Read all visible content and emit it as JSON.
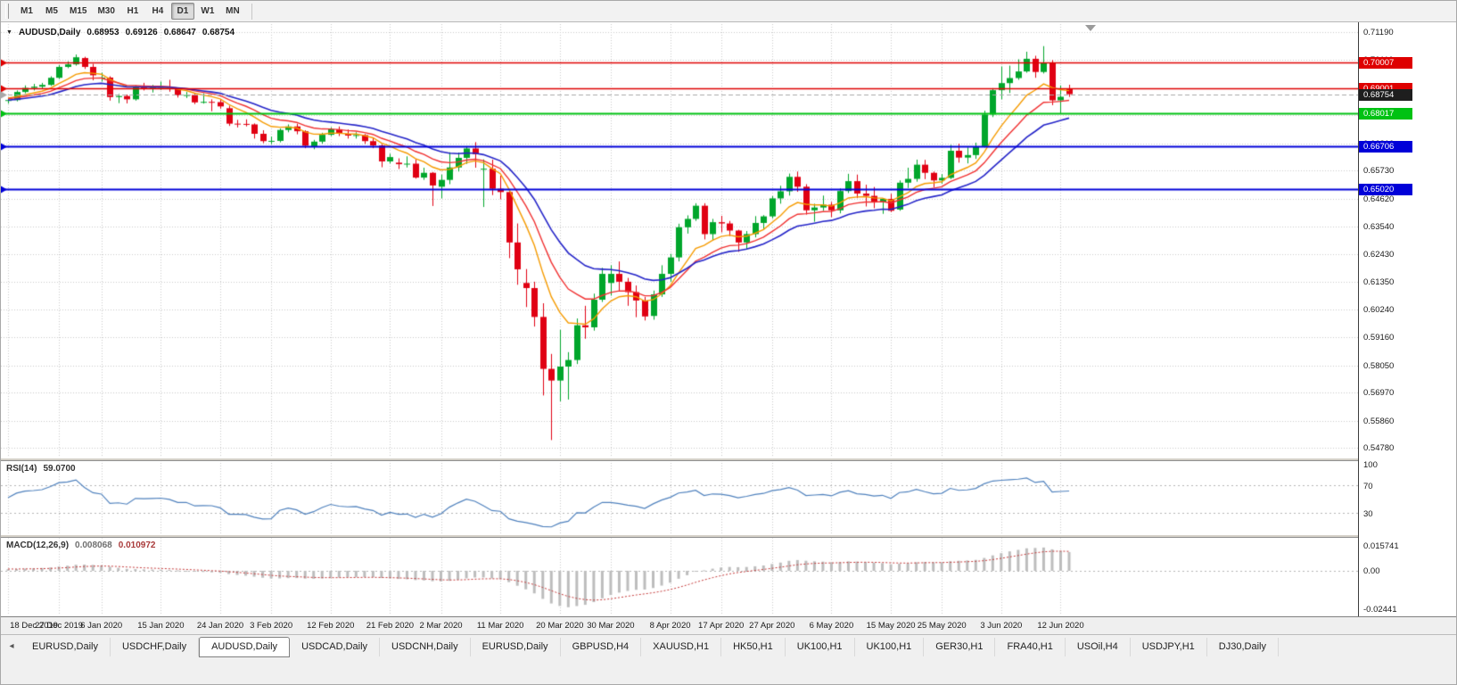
{
  "colors": {
    "app_b g_note": "",
    "grid": "#c9c9c9",
    "app_bg": "#f0f0f0",
    "chart_bg": "#ffffff",
    "axis_text": "#1a1a1a"
  },
  "toolbar": {
    "timeframes": [
      {
        "label": "M1"
      },
      {
        "label": "M5"
      },
      {
        "label": "M15"
      },
      {
        "label": "M30"
      },
      {
        "label": "H1"
      },
      {
        "label": "H4"
      },
      {
        "label": "D1",
        "active": true
      },
      {
        "label": "W1"
      },
      {
        "label": "MN"
      }
    ]
  },
  "chart": {
    "symbol_period": "AUDUSD,Daily",
    "dropdown_icon": "▼",
    "ohlc": {
      "open": "0.68953",
      "high": "0.69126",
      "low": "0.68647",
      "close": "0.68754"
    }
  },
  "tabbar": {
    "scroll_icon": "◂",
    "tabs": [
      {
        "label": "EURUSD,Daily"
      },
      {
        "label": "USDCHF,Daily"
      },
      {
        "label": "AUDUSD,Daily",
        "active": true
      },
      {
        "label": "USDCAD,Daily"
      },
      {
        "label": "USDCNH,Daily"
      },
      {
        "label": "EURUSD,Daily"
      },
      {
        "label": "GBPUSD,H4"
      },
      {
        "label": "XAUUSD,H1"
      },
      {
        "label": "HK50,H1"
      },
      {
        "label": "UK100,H1"
      },
      {
        "label": "UK100,H1"
      },
      {
        "label": "GER30,H1"
      },
      {
        "label": "FRA40,H1"
      },
      {
        "label": "USOil,H4"
      },
      {
        "label": "USDJPY,H1"
      },
      {
        "label": "DJ30,Daily"
      }
    ]
  },
  "chart_data": {
    "type": "candlestick",
    "symbol": "AUDUSD",
    "timeframe": "Daily",
    "bull_color": "#00a62b",
    "bear_color": "#e00013",
    "price_range": {
      "max": 0.7145,
      "min": 0.5455
    },
    "price_axis_labels": [
      "0.71190",
      "0.70110",
      "0.69000",
      "0.67920",
      "0.66810",
      "0.65730",
      "0.64620",
      "0.63540",
      "0.62430",
      "0.61350",
      "0.60240",
      "0.59160",
      "0.58050",
      "0.56970",
      "0.55860",
      "0.54780"
    ],
    "price_lines": [
      {
        "value": 0.70007,
        "label": "0.70007",
        "color": "#de0000",
        "width": 1.4
      },
      {
        "value": 0.69001,
        "label": "0.69001",
        "color": "#de0000",
        "width": 1.4
      },
      {
        "value": 0.68754,
        "label": "0.68754",
        "color": "#a8a8a8",
        "width": 1,
        "dash": true,
        "badge_color": "#1e1e1e"
      },
      {
        "value": 0.68017,
        "label": "0.68017",
        "color": "#00c213",
        "width": 1.8
      },
      {
        "value": 0.66706,
        "label": "0.66706",
        "color": "#0000d8",
        "width": 1.8
      },
      {
        "value": 0.6502,
        "label": "0.65020",
        "color": "#0000d8",
        "width": 1.8
      }
    ],
    "x_labels": [
      {
        "text": "18 Dec 2019",
        "index": 0
      },
      {
        "text": "27 Dec 2019",
        "index": 6
      },
      {
        "text": "6 Jan 2020",
        "index": 11
      },
      {
        "text": "15 Jan 2020",
        "index": 18
      },
      {
        "text": "24 Jan 2020",
        "index": 25
      },
      {
        "text": "3 Feb 2020",
        "index": 31
      },
      {
        "text": "12 Feb 2020",
        "index": 38
      },
      {
        "text": "21 Feb 2020",
        "index": 45
      },
      {
        "text": "2 Mar 2020",
        "index": 51
      },
      {
        "text": "11 Mar 2020",
        "index": 58
      },
      {
        "text": "20 Mar 2020",
        "index": 65
      },
      {
        "text": "30 Mar 2020",
        "index": 71
      },
      {
        "text": "8 Apr 2020",
        "index": 78
      },
      {
        "text": "17 Apr 2020",
        "index": 84
      },
      {
        "text": "27 Apr 2020",
        "index": 90
      },
      {
        "text": "6 May 2020",
        "index": 97
      },
      {
        "text": "15 May 2020",
        "index": 104
      },
      {
        "text": "25 May 2020",
        "index": 110
      },
      {
        "text": "3 Jun 2020",
        "index": 117
      },
      {
        "text": "12 Jun 2020",
        "index": 124
      }
    ],
    "prehistory_closes": [
      0.6672,
      0.67,
      0.674,
      0.676,
      0.6755,
      0.674,
      0.673,
      0.6745,
      0.6762,
      0.6757,
      0.6775,
      0.679,
      0.6785,
      0.6805,
      0.682,
      0.6832,
      0.684,
      0.6829,
      0.6856,
      0.687,
      0.6885,
      0.6879,
      0.689,
      0.6884,
      0.6862,
      0.6843,
      0.6855,
      0.6845,
      0.6826,
      0.68,
      0.6785,
      0.679,
      0.681,
      0.6788,
      0.6802,
      0.682,
      0.684,
      0.685,
      0.6865,
      0.688,
      0.686,
      0.684,
      0.6845,
      0.683,
      0.6852,
      0.687,
      0.689,
      0.688,
      0.6858,
      0.684,
      0.6831,
      0.6845,
      0.686,
      0.6875,
      0.688
    ],
    "candles": [
      [
        0.685,
        0.686,
        0.6838,
        0.6852
      ],
      [
        0.6852,
        0.689,
        0.6847,
        0.6884
      ],
      [
        0.6884,
        0.691,
        0.6879,
        0.69
      ],
      [
        0.69,
        0.6916,
        0.689,
        0.6905
      ],
      [
        0.6905,
        0.692,
        0.6898,
        0.6912
      ],
      [
        0.6912,
        0.6946,
        0.6908,
        0.694
      ],
      [
        0.694,
        0.699,
        0.6935,
        0.6983
      ],
      [
        0.6983,
        0.7005,
        0.6978,
        0.6993
      ],
      [
        0.6993,
        0.7032,
        0.6988,
        0.7021
      ],
      [
        0.7018,
        0.7023,
        0.6975,
        0.6983
      ],
      [
        0.6983,
        0.6995,
        0.693,
        0.695
      ],
      [
        0.694,
        0.696,
        0.6925,
        0.6941
      ],
      [
        0.6941,
        0.6946,
        0.685,
        0.6864
      ],
      [
        0.6864,
        0.6876,
        0.684,
        0.6868
      ],
      [
        0.6868,
        0.6874,
        0.6839,
        0.6855
      ],
      [
        0.6855,
        0.691,
        0.685,
        0.6902
      ],
      [
        0.6902,
        0.692,
        0.689,
        0.6899
      ],
      [
        0.6899,
        0.6912,
        0.6882,
        0.6902
      ],
      [
        0.6902,
        0.6925,
        0.6892,
        0.6904
      ],
      [
        0.6904,
        0.6932,
        0.6885,
        0.6895
      ],
      [
        0.6895,
        0.69,
        0.6862,
        0.6871
      ],
      [
        0.6871,
        0.6884,
        0.686,
        0.6872
      ],
      [
        0.6872,
        0.6878,
        0.6836,
        0.6843
      ],
      [
        0.6843,
        0.6878,
        0.6838,
        0.6845
      ],
      [
        0.6845,
        0.6855,
        0.6808,
        0.6844
      ],
      [
        0.6844,
        0.6856,
        0.6818,
        0.6827
      ],
      [
        0.682,
        0.683,
        0.675,
        0.6759
      ],
      [
        0.6759,
        0.6774,
        0.6744,
        0.6758
      ],
      [
        0.6758,
        0.6776,
        0.6748,
        0.6756
      ],
      [
        0.6756,
        0.676,
        0.67,
        0.6719
      ],
      [
        0.6719,
        0.6733,
        0.6682,
        0.669
      ],
      [
        0.669,
        0.6708,
        0.6678,
        0.6691
      ],
      [
        0.6691,
        0.674,
        0.6685,
        0.6734
      ],
      [
        0.6734,
        0.6756,
        0.6725,
        0.6748
      ],
      [
        0.6748,
        0.6759,
        0.6717,
        0.6729
      ],
      [
        0.6729,
        0.6733,
        0.6662,
        0.6672
      ],
      [
        0.667,
        0.6695,
        0.6658,
        0.6688
      ],
      [
        0.6688,
        0.6723,
        0.668,
        0.6715
      ],
      [
        0.6715,
        0.6745,
        0.671,
        0.6737
      ],
      [
        0.6737,
        0.6748,
        0.671,
        0.6719
      ],
      [
        0.6719,
        0.6736,
        0.67,
        0.6712
      ],
      [
        0.6712,
        0.6725,
        0.67,
        0.6714
      ],
      [
        0.6714,
        0.6718,
        0.6679,
        0.669
      ],
      [
        0.669,
        0.6702,
        0.6662,
        0.6673
      ],
      [
        0.6673,
        0.6678,
        0.6587,
        0.661
      ],
      [
        0.661,
        0.664,
        0.6602,
        0.6627
      ],
      [
        0.6605,
        0.6622,
        0.658,
        0.6599
      ],
      [
        0.6599,
        0.663,
        0.6586,
        0.6601
      ],
      [
        0.6601,
        0.6618,
        0.6542,
        0.6546
      ],
      [
        0.6546,
        0.6585,
        0.6537,
        0.6565
      ],
      [
        0.6565,
        0.6568,
        0.6434,
        0.6515
      ],
      [
        0.651,
        0.6558,
        0.6464,
        0.6537
      ],
      [
        0.6537,
        0.6646,
        0.652,
        0.6586
      ],
      [
        0.6586,
        0.6645,
        0.657,
        0.6624
      ],
      [
        0.6624,
        0.667,
        0.66,
        0.6661
      ],
      [
        0.6661,
        0.6686,
        0.6585,
        0.6638
      ],
      [
        0.658,
        0.6618,
        0.643,
        0.6581
      ],
      [
        0.6581,
        0.6617,
        0.6477,
        0.6502
      ],
      [
        0.6502,
        0.6554,
        0.646,
        0.6489
      ],
      [
        0.6489,
        0.65,
        0.6228,
        0.629
      ],
      [
        0.629,
        0.6365,
        0.6123,
        0.6184
      ],
      [
        0.613,
        0.6185,
        0.6035,
        0.611
      ],
      [
        0.611,
        0.6135,
        0.5958,
        0.5996
      ],
      [
        0.5996,
        0.605,
        0.5686,
        0.5791
      ],
      [
        0.5791,
        0.585,
        0.551,
        0.5745
      ],
      [
        0.5745,
        0.5945,
        0.5663,
        0.58
      ],
      [
        0.58,
        0.5857,
        0.567,
        0.5826
      ],
      [
        0.5826,
        0.599,
        0.581,
        0.5963
      ],
      [
        0.5963,
        0.604,
        0.591,
        0.5955
      ],
      [
        0.5955,
        0.6088,
        0.5942,
        0.6064
      ],
      [
        0.6064,
        0.619,
        0.6055,
        0.6166
      ],
      [
        0.613,
        0.62,
        0.608,
        0.6166
      ],
      [
        0.6166,
        0.6215,
        0.61,
        0.6135
      ],
      [
        0.6135,
        0.615,
        0.604,
        0.6094
      ],
      [
        0.6094,
        0.612,
        0.5995,
        0.6061
      ],
      [
        0.6061,
        0.6075,
        0.5982,
        0.5998
      ],
      [
        0.6,
        0.61,
        0.5985,
        0.6085
      ],
      [
        0.6085,
        0.62,
        0.6075,
        0.6166
      ],
      [
        0.6166,
        0.6245,
        0.6135,
        0.6231
      ],
      [
        0.6231,
        0.6364,
        0.6215,
        0.635
      ],
      [
        0.635,
        0.6397,
        0.6325,
        0.6383
      ],
      [
        0.6383,
        0.6445,
        0.6375,
        0.6435
      ],
      [
        0.6435,
        0.6445,
        0.6302,
        0.6323
      ],
      [
        0.6323,
        0.6383,
        0.63,
        0.637
      ],
      [
        0.637,
        0.6395,
        0.633,
        0.6365
      ],
      [
        0.6365,
        0.6375,
        0.6315,
        0.6337
      ],
      [
        0.6337,
        0.634,
        0.6253,
        0.629
      ],
      [
        0.629,
        0.6335,
        0.6265,
        0.6323
      ],
      [
        0.6323,
        0.6394,
        0.631,
        0.6367
      ],
      [
        0.6367,
        0.6398,
        0.634,
        0.6393
      ],
      [
        0.6393,
        0.6473,
        0.6385,
        0.6464
      ],
      [
        0.6464,
        0.6514,
        0.6443,
        0.6492
      ],
      [
        0.6492,
        0.6562,
        0.6475,
        0.6549
      ],
      [
        0.6549,
        0.657,
        0.649,
        0.651
      ],
      [
        0.651,
        0.652,
        0.64,
        0.6417
      ],
      [
        0.6417,
        0.6443,
        0.6372,
        0.6428
      ],
      [
        0.6428,
        0.6475,
        0.6415,
        0.6439
      ],
      [
        0.6439,
        0.645,
        0.639,
        0.6417
      ],
      [
        0.6417,
        0.6503,
        0.6405,
        0.6493
      ],
      [
        0.6493,
        0.6561,
        0.6485,
        0.6532
      ],
      [
        0.6532,
        0.6558,
        0.6465,
        0.6483
      ],
      [
        0.6483,
        0.6518,
        0.6432,
        0.6474
      ],
      [
        0.6474,
        0.6509,
        0.6425,
        0.645
      ],
      [
        0.645,
        0.6465,
        0.6403,
        0.6462
      ],
      [
        0.6462,
        0.6482,
        0.641,
        0.6415
      ],
      [
        0.642,
        0.6535,
        0.6415,
        0.6526
      ],
      [
        0.6526,
        0.6585,
        0.6505,
        0.6541
      ],
      [
        0.6541,
        0.6617,
        0.653,
        0.6597
      ],
      [
        0.6597,
        0.6616,
        0.654,
        0.6565
      ],
      [
        0.6565,
        0.657,
        0.6508,
        0.6535
      ],
      [
        0.6535,
        0.656,
        0.6522,
        0.6545
      ],
      [
        0.6545,
        0.6675,
        0.654,
        0.6652
      ],
      [
        0.6652,
        0.668,
        0.6605,
        0.6625
      ],
      [
        0.6625,
        0.6665,
        0.6602,
        0.6635
      ],
      [
        0.6635,
        0.6684,
        0.662,
        0.6667
      ],
      [
        0.667,
        0.681,
        0.6665,
        0.6795
      ],
      [
        0.6795,
        0.6899,
        0.6785,
        0.6891
      ],
      [
        0.6891,
        0.6985,
        0.6855,
        0.6919
      ],
      [
        0.6919,
        0.6988,
        0.688,
        0.6939
      ],
      [
        0.6939,
        0.7013,
        0.6932,
        0.6965
      ],
      [
        0.6965,
        0.7043,
        0.696,
        0.7015
      ],
      [
        0.7015,
        0.7027,
        0.694,
        0.6963
      ],
      [
        0.6963,
        0.7065,
        0.6957,
        0.7
      ],
      [
        0.7,
        0.701,
        0.6832,
        0.6851
      ],
      [
        0.6851,
        0.691,
        0.68,
        0.6865
      ],
      [
        0.68953,
        0.69126,
        0.68647,
        0.68754
      ]
    ],
    "indicators": {
      "moving_averages": [
        {
          "period": 8,
          "method": "ema",
          "color": "#f59b00",
          "width": 1.4
        },
        {
          "period": 13,
          "method": "ema",
          "color": "#f03030",
          "width": 1.4
        },
        {
          "period": 21,
          "method": "ema",
          "color": "#2424c8",
          "width": 1.6
        }
      ],
      "rsi": {
        "label": "RSI(14)",
        "value": "59.0700",
        "period": 14,
        "color": "#4f81bd",
        "levels": [
          70,
          30
        ],
        "axis_labels": [
          "100",
          "70",
          "30"
        ]
      },
      "macd": {
        "label": "MACD(12,26,9)",
        "value_main": "0.008068",
        "value_signal": "0.010972",
        "fast": 12,
        "slow": 26,
        "signal_period": 9,
        "hist_color": "#bdbdbd",
        "signal_color": "#c43939",
        "axis_labels": [
          "0.015741",
          "0.00",
          "-0.02441"
        ],
        "scale_max": 0.0185,
        "scale_min": -0.0275
      }
    }
  }
}
